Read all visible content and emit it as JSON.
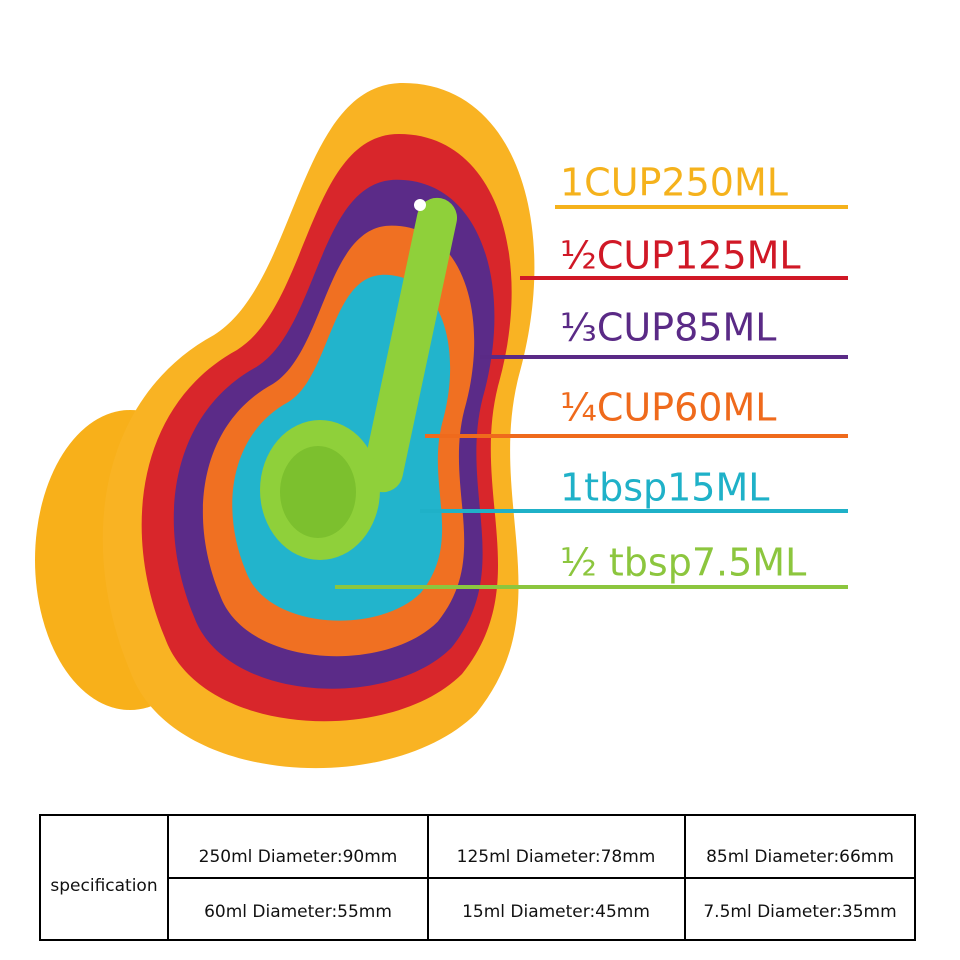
{
  "labels": [
    {
      "text": "1CUP250ML",
      "color": "#f5b21c"
    },
    {
      "text": "½CUP125ML",
      "color": "#d01826"
    },
    {
      "text": "⅓CUP85ML",
      "color": "#5a2a86"
    },
    {
      "text": "¼CUP60ML",
      "color": "#ef6a1c"
    },
    {
      "text": "1tbsp15ML",
      "color": "#1fb1c8"
    },
    {
      "text": "½ tbsp7.5ML",
      "color": "#8cc63e"
    }
  ],
  "table": {
    "header": "specification",
    "rows": [
      [
        "250ml  Diameter:90mm",
        "125ml   Diameter:78mm",
        "85ml   Diameter:66mm"
      ],
      [
        "60ml   Diameter:55mm",
        "15ml   Diameter:45mm",
        "7.5ml   Diameter:35mm"
      ]
    ]
  }
}
